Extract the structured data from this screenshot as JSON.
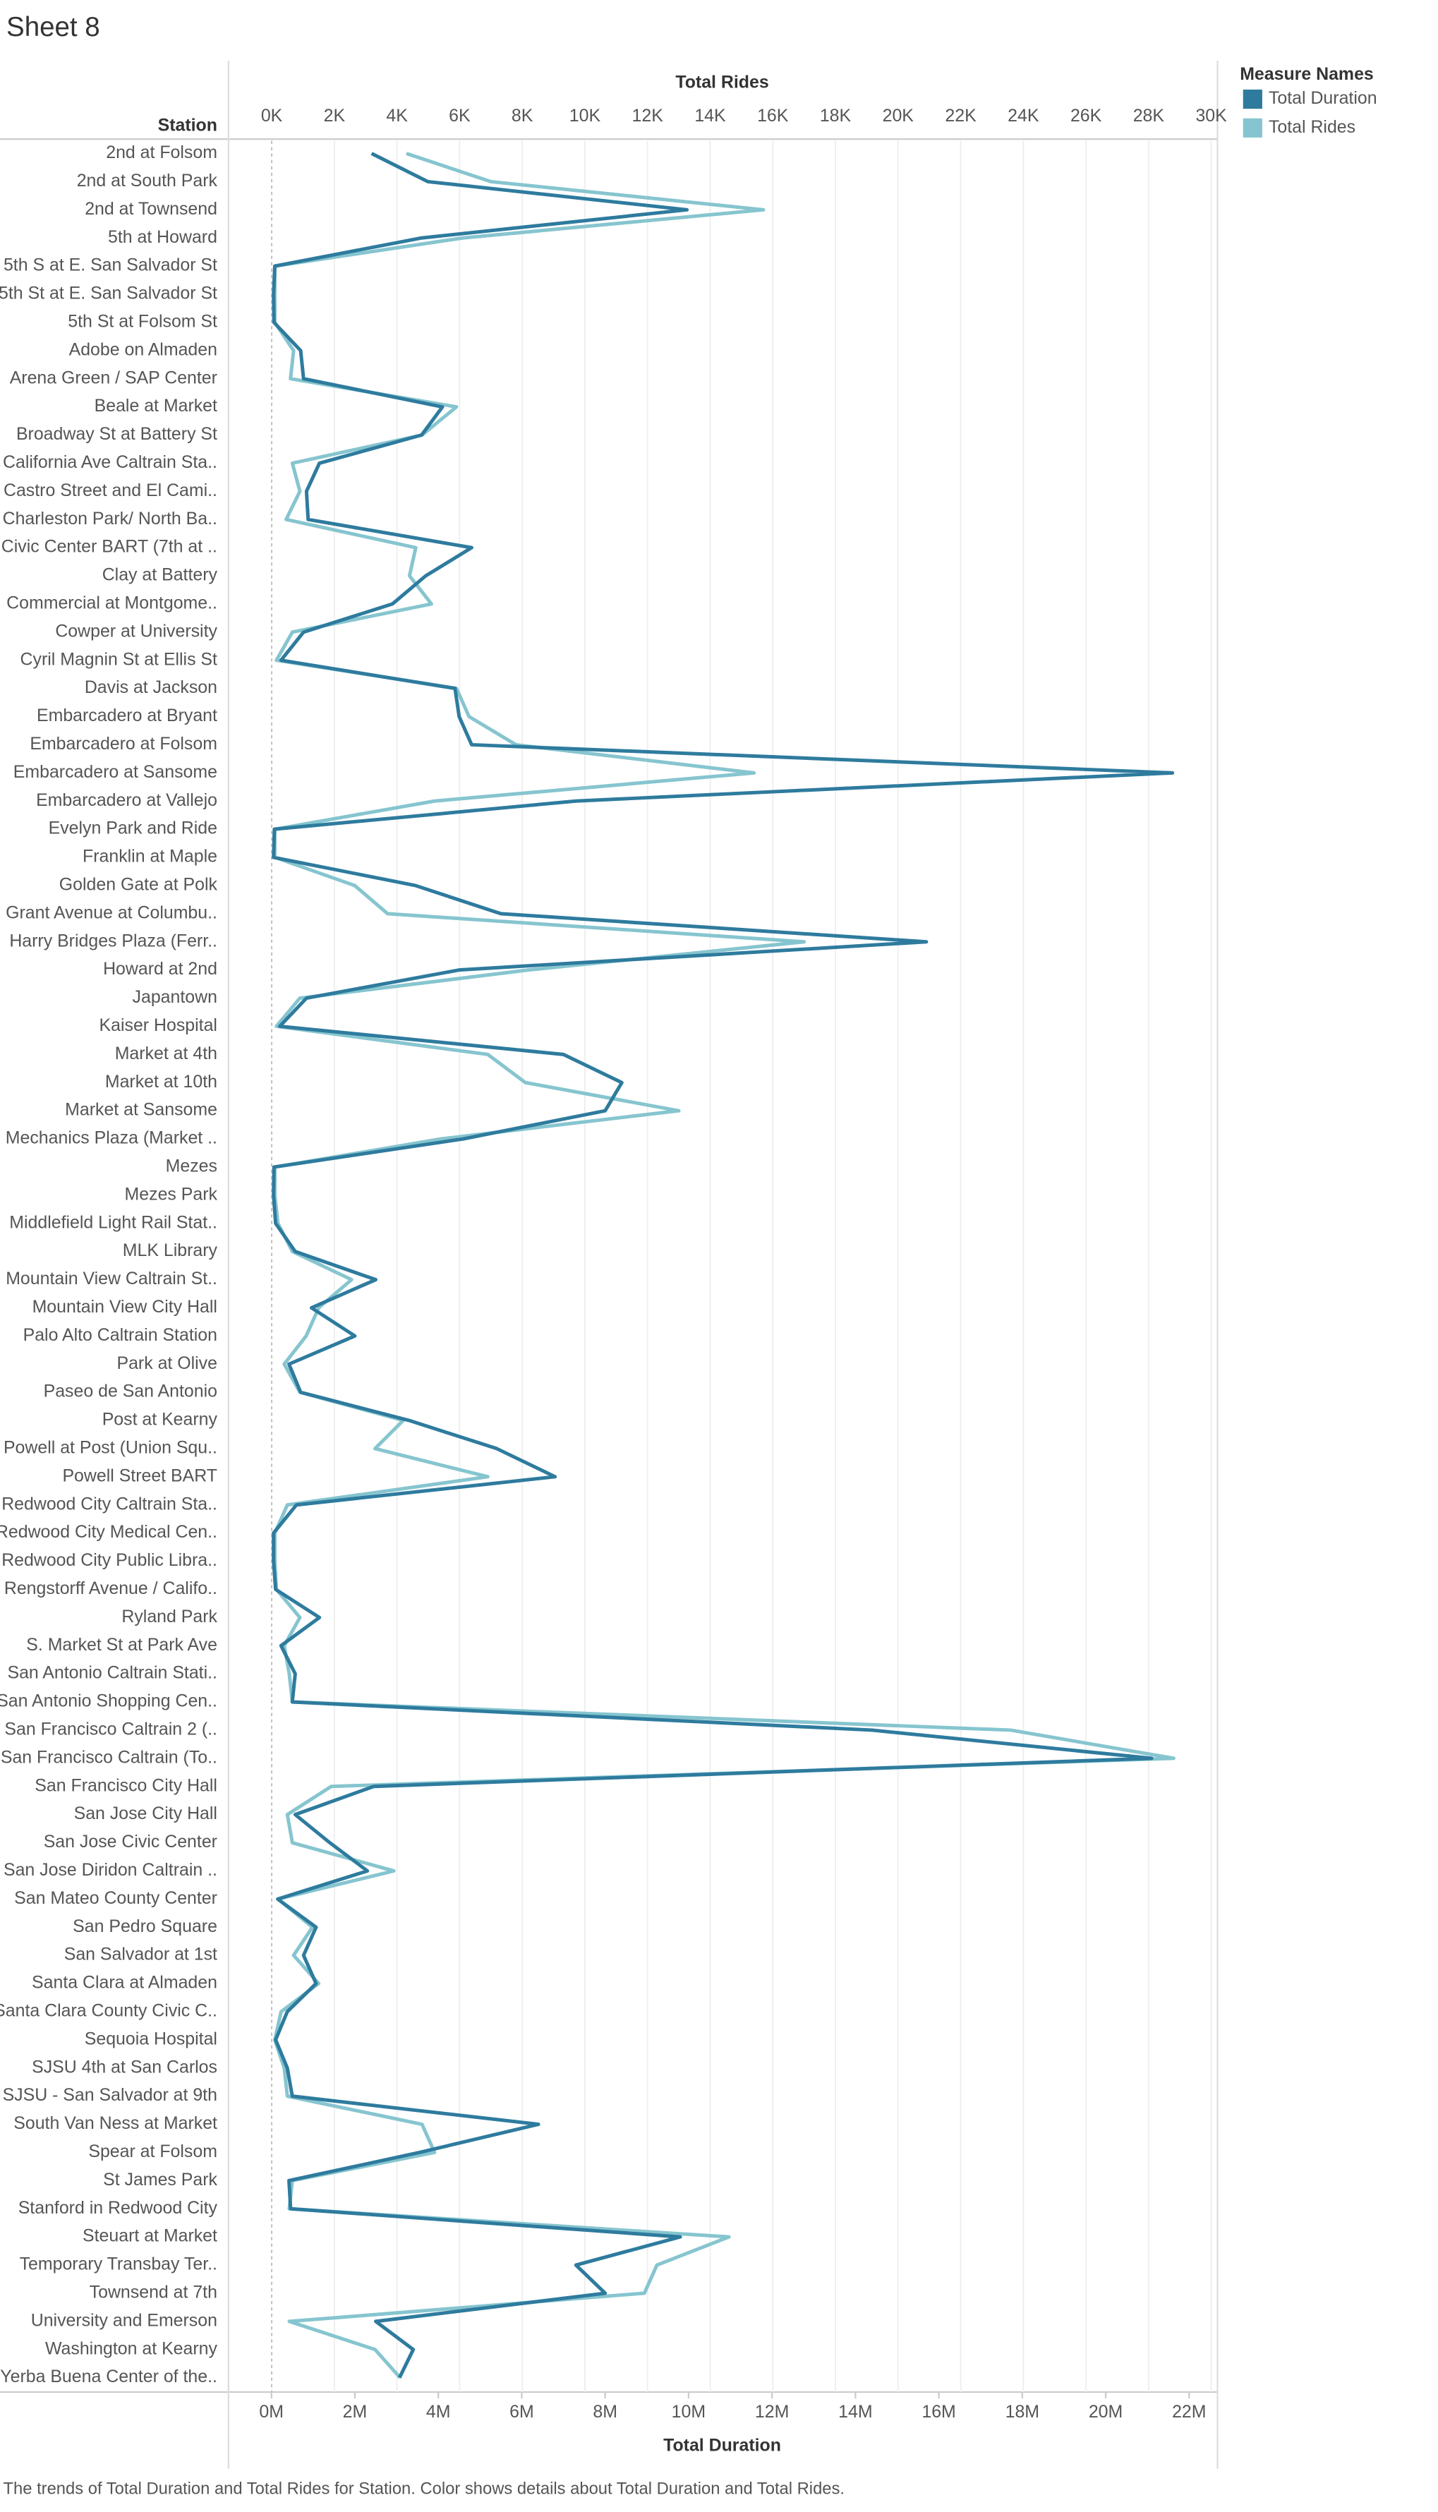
{
  "chart_data": {
    "type": "line",
    "title": "Sheet 8",
    "row_header": "Station",
    "x_label": "Total Duration",
    "x2_label": "Total Rides",
    "legend_title": "Measure Names",
    "caption": "The trends of Total Duration and Total Rides for Station.  Color shows details about Total Duration and Total Rides.",
    "categories": [
      "2nd at Folsom",
      "2nd at South Park",
      "2nd at Townsend",
      "5th at Howard",
      "5th S at E. San Salvador St",
      "5th St at E. San Salvador St",
      "5th St at Folsom St",
      "Adobe on Almaden",
      "Arena Green / SAP Center",
      "Beale at Market",
      "Broadway St at Battery St",
      "California Ave Caltrain Sta..",
      "Castro Street and El Cami..",
      "Charleston Park/ North Ba..",
      "Civic Center BART (7th at ..",
      "Clay at Battery",
      "Commercial at Montgome..",
      "Cowper at University",
      "Cyril Magnin St at Ellis St",
      "Davis at Jackson",
      "Embarcadero at Bryant",
      "Embarcadero at Folsom",
      "Embarcadero at Sansome",
      "Embarcadero at Vallejo",
      "Evelyn Park and Ride",
      "Franklin at Maple",
      "Golden Gate at Polk",
      "Grant Avenue at Columbu..",
      "Harry Bridges Plaza (Ferr..",
      "Howard at 2nd",
      "Japantown",
      "Kaiser Hospital",
      "Market at 4th",
      "Market at 10th",
      "Market at Sansome",
      "Mechanics Plaza (Market ..",
      "Mezes",
      "Mezes Park",
      "Middlefield Light Rail Stat..",
      "MLK Library",
      "Mountain View Caltrain St..",
      "Mountain View City Hall",
      "Palo Alto Caltrain Station",
      "Park at Olive",
      "Paseo de San Antonio",
      "Post at Kearny",
      "Powell at Post (Union Squ..",
      "Powell Street BART",
      "Redwood City Caltrain Sta..",
      "Redwood City Medical Cen..",
      "Redwood City Public Libra..",
      "Rengstorff Avenue / Califo..",
      "Ryland Park",
      "S. Market St at Park Ave",
      "San Antonio Caltrain Stati..",
      "San Antonio Shopping Cen..",
      "San Francisco Caltrain 2 (..",
      "San Francisco Caltrain (To..",
      "San Francisco City Hall",
      "San Jose City Hall",
      "San Jose Civic Center",
      "San Jose Diridon Caltrain ..",
      "San Mateo County Center",
      "San Pedro Square",
      "San Salvador at 1st",
      "Santa Clara at Almaden",
      "Santa Clara County Civic C..",
      "Sequoia Hospital",
      "SJSU 4th at San Carlos",
      "SJSU - San Salvador at 9th",
      "South Van Ness at Market",
      "Spear at Folsom",
      "St James Park",
      "Stanford in Redwood City",
      "Steuart at Market",
      "Temporary Transbay Ter..",
      "Townsend at 7th",
      "University and Emerson",
      "Washington at Kearny",
      "Yerba Buena Center of the.."
    ],
    "series": [
      {
        "name": "Total Duration",
        "color": "#2e7b9e",
        "axis": "x",
        "values": [
          2400000,
          3750000,
          9960000,
          3600000,
          80000,
          50000,
          60000,
          700000,
          770000,
          4100000,
          3600000,
          1150000,
          840000,
          880000,
          4800000,
          3700000,
          2900000,
          770000,
          230000,
          4400000,
          4500000,
          4800000,
          21600000,
          7300000,
          70000,
          50000,
          3450000,
          5500000,
          15700000,
          4500000,
          840000,
          200000,
          7000000,
          8400000,
          8000000,
          4600000,
          60000,
          50000,
          100000,
          570000,
          2500000,
          960000,
          2000000,
          420000,
          700000,
          3300000,
          5400000,
          6800000,
          600000,
          50000,
          50000,
          100000,
          1150000,
          230000,
          570000,
          500000,
          14400000,
          21100000,
          2450000,
          570000,
          1400000,
          2300000,
          150000,
          1070000,
          770000,
          1070000,
          380000,
          100000,
          380000,
          500000,
          6400000,
          3550000,
          420000,
          460000,
          9800000,
          7300000,
          8000000,
          2500000,
          3400000,
          3070000
        ]
      },
      {
        "name": "Total Rides",
        "color": "#86c5cf",
        "axis": "x2",
        "values": [
          4300,
          7000,
          15700,
          6100,
          100,
          100,
          100,
          700,
          600,
          5900,
          4800,
          660,
          900,
          460,
          4600,
          4400,
          5100,
          660,
          150,
          5900,
          6300,
          7800,
          15400,
          5200,
          100,
          100,
          2650,
          3700,
          17000,
          8200,
          900,
          150,
          6900,
          8100,
          13000,
          5400,
          100,
          100,
          200,
          660,
          2550,
          1500,
          1100,
          400,
          900,
          4200,
          3300,
          6900,
          500,
          100,
          100,
          150,
          900,
          400,
          560,
          660,
          23600,
          28800,
          1900,
          500,
          660,
          3900,
          200,
          1300,
          700,
          1500,
          300,
          100,
          400,
          500,
          4800,
          5200,
          660,
          560,
          14600,
          12300,
          11900,
          560,
          3300,
          4100
        ]
      }
    ],
    "xlim": [
      -1030000,
      22680000
    ],
    "xticks": [
      {
        "value": 0,
        "label": "0M"
      },
      {
        "value": 2000000,
        "label": "2M"
      },
      {
        "value": 4000000,
        "label": "4M"
      },
      {
        "value": 6000000,
        "label": "6M"
      },
      {
        "value": 8000000,
        "label": "8M"
      },
      {
        "value": 10000000,
        "label": "10M"
      },
      {
        "value": 12000000,
        "label": "12M"
      },
      {
        "value": 14000000,
        "label": "14M"
      },
      {
        "value": 16000000,
        "label": "16M"
      },
      {
        "value": 18000000,
        "label": "18M"
      },
      {
        "value": 20000000,
        "label": "20M"
      },
      {
        "value": 22000000,
        "label": "22M"
      }
    ],
    "x2lim": [
      -1380,
      30200
    ],
    "x2ticks": [
      {
        "value": 0,
        "label": "0K"
      },
      {
        "value": 2000,
        "label": "2K"
      },
      {
        "value": 4000,
        "label": "4K"
      },
      {
        "value": 6000,
        "label": "6K"
      },
      {
        "value": 8000,
        "label": "8K"
      },
      {
        "value": 10000,
        "label": "10K"
      },
      {
        "value": 12000,
        "label": "12K"
      },
      {
        "value": 14000,
        "label": "14K"
      },
      {
        "value": 16000,
        "label": "16K"
      },
      {
        "value": 18000,
        "label": "18K"
      },
      {
        "value": 20000,
        "label": "20K"
      },
      {
        "value": 22000,
        "label": "22K"
      },
      {
        "value": 24000,
        "label": "24K"
      },
      {
        "value": 26000,
        "label": "26K"
      },
      {
        "value": 28000,
        "label": "28K"
      },
      {
        "value": 30000,
        "label": "30K"
      }
    ],
    "grid": true,
    "legend_position": "right"
  }
}
